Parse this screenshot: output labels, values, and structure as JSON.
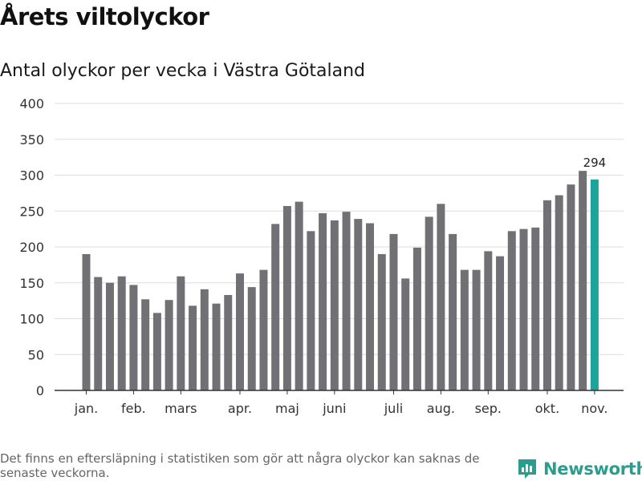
{
  "header": {
    "title": "Årets viltolyckor",
    "subtitle": "Antal olyckor per vecka i Västra Götaland"
  },
  "footer": {
    "note": "Det finns en eftersläpning i statistiken som gör att några olyckor kan saknas de senaste veckorna.",
    "brand": "Newsworthy"
  },
  "colors": {
    "bar": "#717075",
    "highlight": "#1ca39b",
    "grid": "#dddddd",
    "axis": "#333333",
    "brand": "#2a9d8f"
  },
  "chart_data": {
    "type": "bar",
    "title": "Årets viltolyckor",
    "subtitle": "Antal olyckor per vecka i Västra Götaland",
    "xlabel": "",
    "ylabel": "",
    "ylim": [
      0,
      400
    ],
    "yticks": [
      0,
      50,
      100,
      150,
      200,
      250,
      300,
      350,
      400
    ],
    "grid": true,
    "month_labels": [
      "jan.",
      "feb.",
      "mars",
      "apr.",
      "maj",
      "juni",
      "juli",
      "aug.",
      "sep.",
      "okt.",
      "nov."
    ],
    "month_label_weeks": [
      1,
      5,
      9,
      14,
      18,
      22,
      27,
      31,
      35,
      40,
      44
    ],
    "weeks": [
      1,
      2,
      3,
      4,
      5,
      6,
      7,
      8,
      9,
      10,
      11,
      12,
      13,
      14,
      15,
      16,
      17,
      18,
      19,
      20,
      21,
      22,
      23,
      24,
      25,
      26,
      27,
      28,
      29,
      30,
      31,
      32,
      33,
      34,
      35,
      36,
      37,
      38,
      39,
      40,
      41,
      42,
      43,
      44
    ],
    "values": [
      190,
      158,
      150,
      159,
      147,
      127,
      108,
      126,
      159,
      118,
      141,
      121,
      133,
      163,
      144,
      168,
      232,
      257,
      263,
      222,
      247,
      237,
      249,
      239,
      233,
      190,
      218,
      156,
      199,
      242,
      260,
      218,
      168,
      168,
      194,
      187,
      222,
      225,
      227,
      265,
      272,
      287,
      306,
      294
    ],
    "highlight_index": 43,
    "highlight_label": "294"
  }
}
